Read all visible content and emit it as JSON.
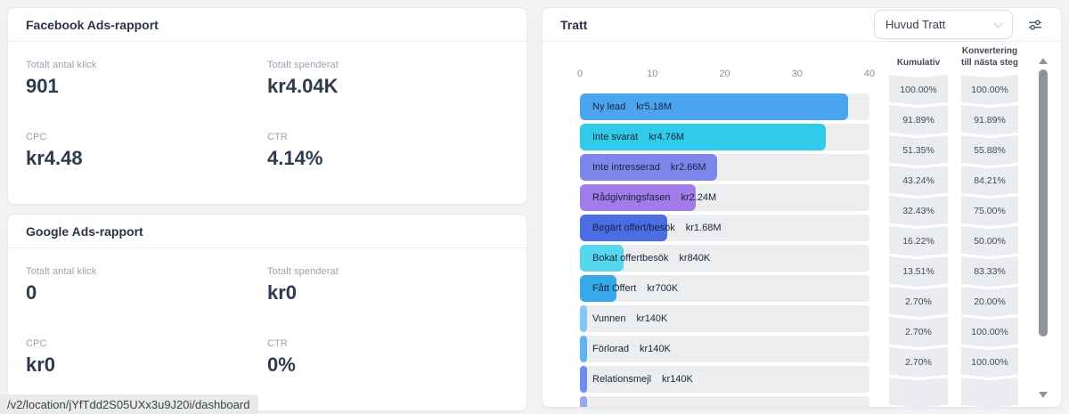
{
  "app": {
    "background": "#f1f2f4",
    "card_border": "#e7e9ec"
  },
  "status_bar": {
    "url": "/v2/location/jYfTdd2S05UXx3u9J20i/dashboard"
  },
  "facebook_card": {
    "title": "Facebook Ads-rapport",
    "metrics": [
      {
        "label": "Totalt antal klick",
        "value": "901"
      },
      {
        "label": "Totalt spenderat",
        "value": "kr4.04K"
      },
      {
        "label": "CPC",
        "value": "kr4.48"
      },
      {
        "label": "CTR",
        "value": "4.14%"
      }
    ]
  },
  "google_card": {
    "title": "Google Ads-rapport",
    "metrics": [
      {
        "label": "Totalt antal klick",
        "value": "0"
      },
      {
        "label": "Totalt spenderat",
        "value": "kr0"
      },
      {
        "label": "CPC",
        "value": "kr0"
      },
      {
        "label": "CTR",
        "value": "0%"
      }
    ]
  },
  "funnel_card": {
    "title": "Tratt",
    "selector_value": "Huvud Tratt",
    "filter_icon": "sliders-icon",
    "cumulative_header": "Kumulativ",
    "conversion_header": "Konvertering till nästa steg"
  },
  "chart_data": {
    "type": "bar",
    "orientation": "horizontal",
    "title": "Tratt",
    "x_ticks": [
      0,
      10,
      20,
      30,
      40
    ],
    "xlim": [
      0,
      40
    ],
    "grid": false,
    "track_color": "#ecedef",
    "stages": [
      {
        "label": "Ny lead",
        "amount": "kr5.18M",
        "value": 37,
        "cumulative": "100.00%",
        "conversion": "100.00%",
        "color": "#4BA4F0"
      },
      {
        "label": "Inte svarat",
        "amount": "kr4.76M",
        "value": 34,
        "cumulative": "91.89%",
        "conversion": "91.89%",
        "color": "#2FCBE9"
      },
      {
        "label": "Inte intresserad",
        "amount": "kr2.66M",
        "value": 19,
        "cumulative": "51.35%",
        "conversion": "55.88%",
        "color": "#7D86EB"
      },
      {
        "label": "Rådgivningsfasen",
        "amount": "kr2.24M",
        "value": 16,
        "cumulative": "43.24%",
        "conversion": "84.21%",
        "color": "#A27CEB"
      },
      {
        "label": "Begärt offert/besök",
        "amount": "kr1.68M",
        "value": 12,
        "cumulative": "32.43%",
        "conversion": "75.00%",
        "color": "#4A6DE6"
      },
      {
        "label": "Bokat offertbesök",
        "amount": "kr840K",
        "value": 6,
        "cumulative": "16.22%",
        "conversion": "50.00%",
        "color": "#55D7EE"
      },
      {
        "label": "Fått Offert",
        "amount": "kr700K",
        "value": 5,
        "cumulative": "13.51%",
        "conversion": "83.33%",
        "color": "#36A9E9"
      },
      {
        "label": "Vunnen",
        "amount": "kr140K",
        "value": 1,
        "cumulative": "2.70%",
        "conversion": "20.00%",
        "color": "#83C7F7"
      },
      {
        "label": "Förlorad",
        "amount": "kr140K",
        "value": 1,
        "cumulative": "2.70%",
        "conversion": "100.00%",
        "color": "#60B4F4"
      },
      {
        "label": "Relationsmejl",
        "amount": "kr140K",
        "value": 1,
        "cumulative": "2.70%",
        "conversion": "100.00%",
        "color": "#6D8CF0"
      },
      {
        "label": "",
        "amount": "",
        "value": 1,
        "cumulative": "",
        "conversion": "",
        "color": "#93A8F2",
        "partial": true
      }
    ]
  }
}
